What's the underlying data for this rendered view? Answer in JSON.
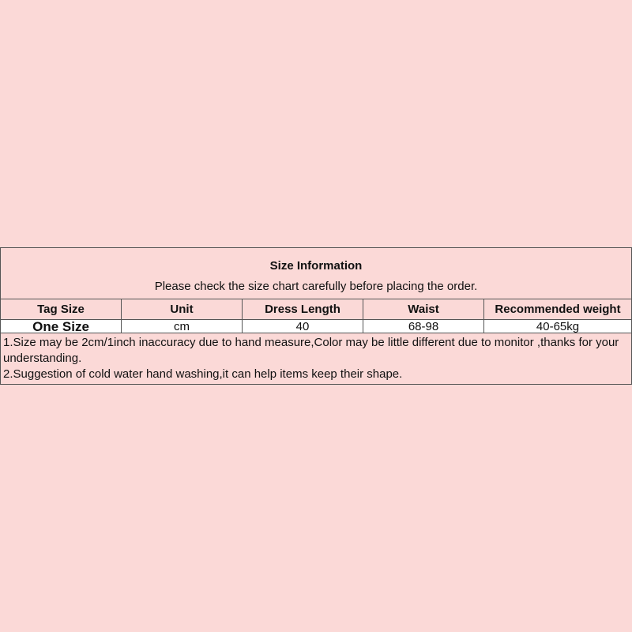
{
  "table": {
    "title": "Size Information",
    "subtitle": "Please check the size chart carefully before placing the order.",
    "headers": [
      "Tag Size",
      "Unit",
      "Dress Length",
      "Waist",
      "Recommended weight"
    ],
    "rows": [
      [
        "One Size",
        "cm",
        "40",
        "68-98",
        "40-65kg"
      ]
    ],
    "notes": [
      "1.Size may be 2cm/1inch inaccuracy due to hand measure,Color may be little different due to monitor ,thanks for your understanding.",
      "2.Suggestion of cold water hand washing,it can help items keep their shape."
    ]
  },
  "colors": {
    "background": "#fbd9d7",
    "data_row": "#ffffff",
    "border": "#555555"
  }
}
